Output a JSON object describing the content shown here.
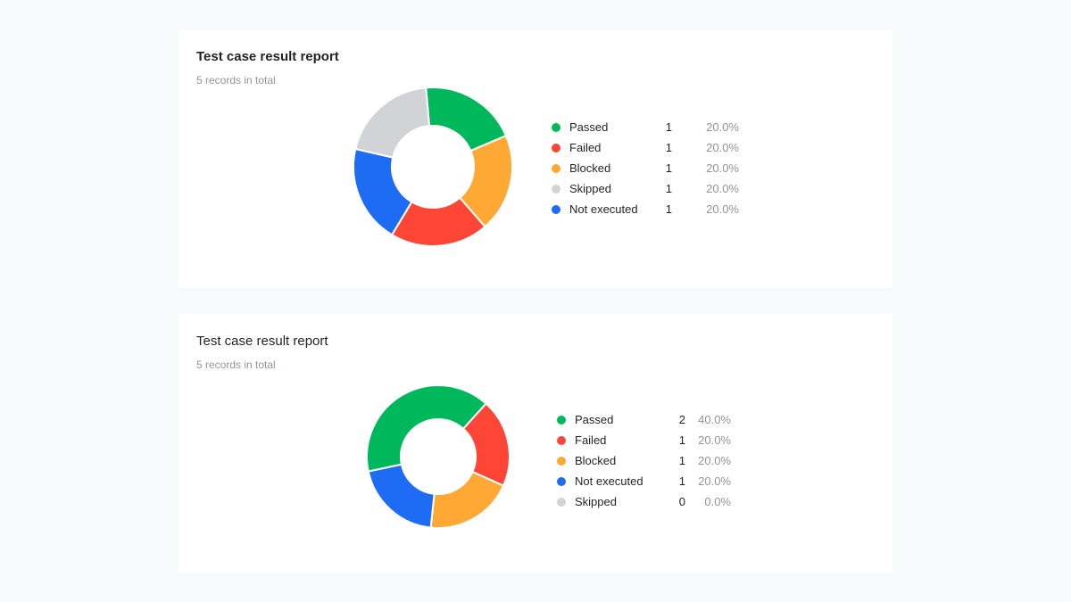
{
  "chart_data": [
    {
      "type": "pie",
      "title": "Test case result report",
      "subtitle": "5 records in total",
      "series": [
        {
          "name": "Passed",
          "count": "1",
          "percent": "20.0%",
          "value": 1,
          "color": "#00b85c"
        },
        {
          "name": "Blocked",
          "count": "1",
          "percent": "20.0%",
          "value": 1,
          "color": "#ffa834"
        },
        {
          "name": "Failed",
          "count": "1",
          "percent": "20.0%",
          "value": 1,
          "color": "#ff4536"
        },
        {
          "name": "Not executed",
          "count": "1",
          "percent": "20.0%",
          "value": 1,
          "color": "#1e6cf4"
        },
        {
          "name": "Skipped",
          "count": "1",
          "percent": "20.0%",
          "value": 1,
          "color": "#d2d3d6"
        }
      ],
      "legend_order": [
        "Passed",
        "Failed",
        "Blocked",
        "Skipped",
        "Not executed"
      ],
      "start_angle_deg": -5,
      "legend_position": "right"
    },
    {
      "type": "pie",
      "title": "Test case result report",
      "subtitle": "5 records in total",
      "series": [
        {
          "name": "Passed",
          "count": "2",
          "percent": "40.0%",
          "value": 2,
          "color": "#00b85c"
        },
        {
          "name": "Failed",
          "count": "1",
          "percent": "20.0%",
          "value": 1,
          "color": "#ff4536"
        },
        {
          "name": "Blocked",
          "count": "1",
          "percent": "20.0%",
          "value": 1,
          "color": "#ffa834"
        },
        {
          "name": "Not executed",
          "count": "1",
          "percent": "20.0%",
          "value": 1,
          "color": "#1e6cf4"
        },
        {
          "name": "Skipped",
          "count": "0",
          "percent": "0.0%",
          "value": 0,
          "color": "#d2d3d6"
        }
      ],
      "legend_order": [
        "Passed",
        "Failed",
        "Blocked",
        "Not executed",
        "Skipped"
      ],
      "start_angle_deg": -102,
      "legend_position": "right"
    }
  ]
}
